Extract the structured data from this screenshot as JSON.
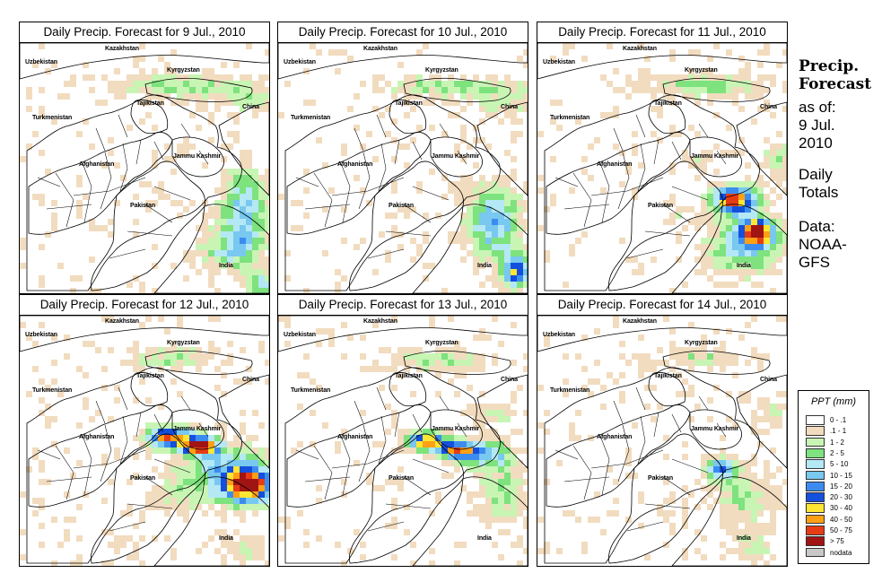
{
  "panels": [
    {
      "title": "Daily Precip. Forecast for  9 Jul., 2010",
      "variant": 0
    },
    {
      "title": "Daily Precip. Forecast for  10 Jul., 2010",
      "variant": 1
    },
    {
      "title": "Daily Precip. Forecast for  11 Jul., 2010",
      "variant": 2
    },
    {
      "title": "Daily Precip. Forecast for  12 Jul., 2010",
      "variant": 3
    },
    {
      "title": "Daily Precip. Forecast for  13 Jul., 2010",
      "variant": 4
    },
    {
      "title": "Daily Precip. Forecast for  14 Jul., 2010",
      "variant": 5
    }
  ],
  "map_labels": {
    "uzbekistan": "Uzbekistan",
    "kazakhstan": "Kazakhstan",
    "kyrgyzstan": "Kyrgyzstan",
    "tajikistan": "Tajikistan",
    "china": "China",
    "turkmenistan": "Turkmenistan",
    "afghanistan": "Afghanistan",
    "jammu_kashmir": "Jammu Kashmir",
    "pakistan": "Pakistan",
    "india": "India"
  },
  "sidebar": {
    "title_line1": "Precip.",
    "title_line2": "Forecast",
    "as_of_line1": "as of:",
    "as_of_line2": "9 Jul.",
    "as_of_line3": "2010",
    "daily_line1": "Daily",
    "daily_line2": "Totals",
    "data_line1": "Data:",
    "data_line2": "NOAA-",
    "data_line3": "GFS"
  },
  "legend": {
    "title": "PPT (mm)",
    "items": [
      {
        "label": "0 - .1",
        "color": "#ffffff"
      },
      {
        "label": ".1 - 1",
        "color": "#f2dcbf"
      },
      {
        "label": "1 - 2",
        "color": "#c8f5b4"
      },
      {
        "label": "2 - 5",
        "color": "#7ee27e"
      },
      {
        "label": "5 - 10",
        "color": "#b4e8f5"
      },
      {
        "label": "10 - 15",
        "color": "#78c8f0"
      },
      {
        "label": "15 - 20",
        "color": "#3c8cf0"
      },
      {
        "label": "20 - 30",
        "color": "#1450dc"
      },
      {
        "label": "30 - 40",
        "color": "#ffe632"
      },
      {
        "label": "40 - 50",
        "color": "#ffa014"
      },
      {
        "label": "50 - 75",
        "color": "#e63c14"
      },
      {
        "label": "> 75",
        "color": "#a01414"
      },
      {
        "label": "nodata",
        "color": "#c8c8c8"
      }
    ]
  }
}
